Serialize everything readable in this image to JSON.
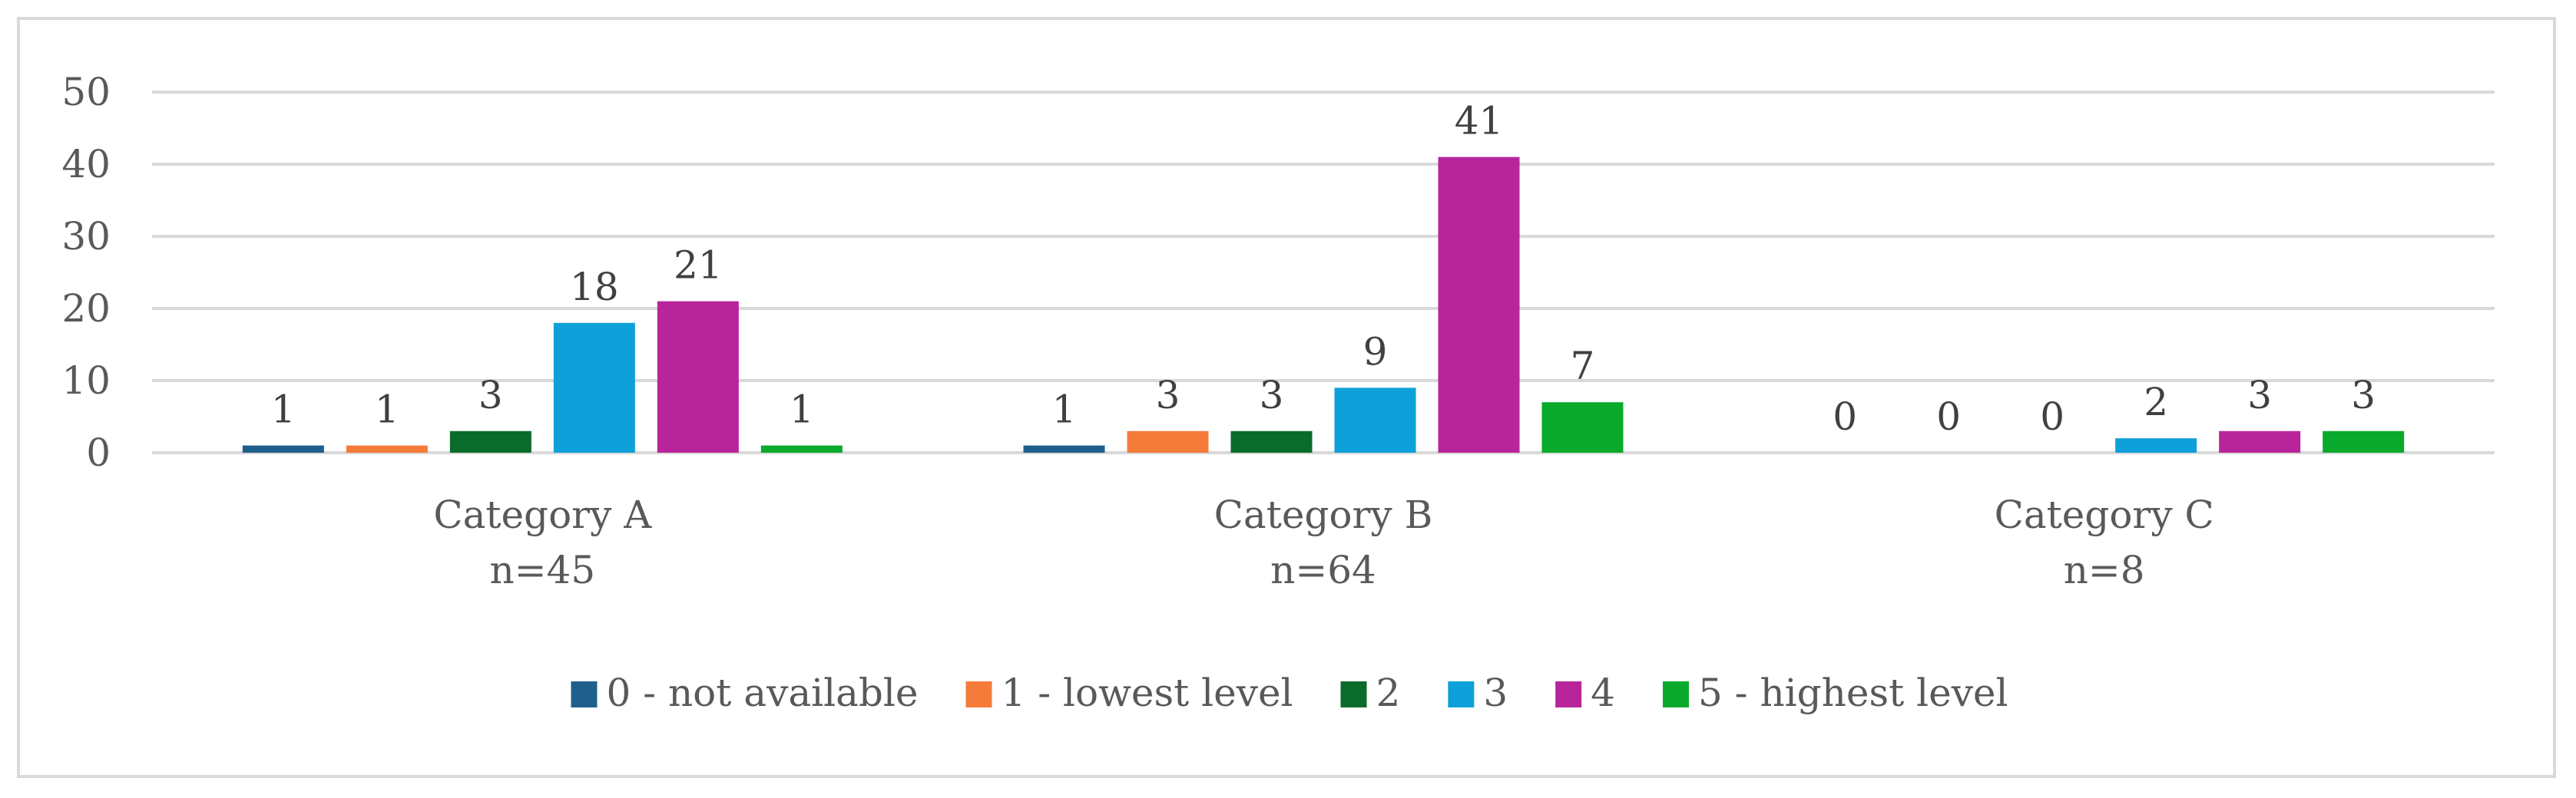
{
  "chart_data": {
    "type": "bar",
    "title": "",
    "xlabel": "",
    "ylabel": "",
    "ylim": [
      0,
      50
    ],
    "yticks": [
      0,
      10,
      20,
      30,
      40,
      50
    ],
    "grid": true,
    "legend_position": "bottom",
    "categories": [
      {
        "name": "Category A",
        "n": "n=45"
      },
      {
        "name": "Category B",
        "n": "n=64"
      },
      {
        "name": "Category C",
        "n": "n=8"
      }
    ],
    "series": [
      {
        "name": "0 - not available",
        "color": "#1f5f8b",
        "values": [
          1,
          1,
          0
        ]
      },
      {
        "name": "1 - lowest level",
        "color": "#f47b3a",
        "values": [
          1,
          3,
          0
        ]
      },
      {
        "name": "2",
        "color": "#0b6b2b",
        "values": [
          3,
          3,
          0
        ]
      },
      {
        "name": "3",
        "color": "#0ea0d8",
        "values": [
          18,
          9,
          2
        ]
      },
      {
        "name": "4",
        "color": "#b8259a",
        "values": [
          21,
          41,
          3
        ]
      },
      {
        "name": "5 - highest level",
        "color": "#0aaa2c",
        "values": [
          1,
          7,
          3
        ]
      }
    ],
    "gridline_color": "#d9d9d9",
    "axis_color": "#d9d9d9"
  }
}
